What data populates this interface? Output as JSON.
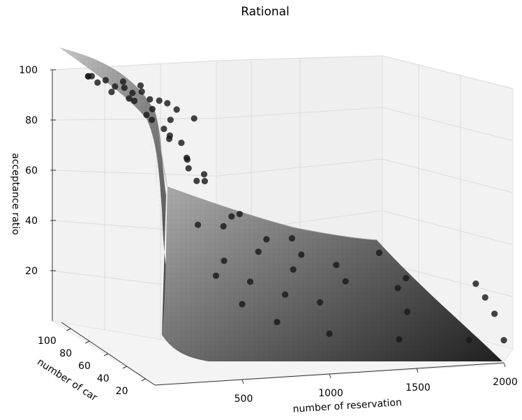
{
  "chart_data": {
    "type": "scatter",
    "projection": "3d",
    "title": "Rational",
    "xlabel": "number of reservation",
    "ylabel": "number of car",
    "zlabel": "acceptance ratio",
    "x_ticks": [
      "500",
      "1000",
      "1500",
      "2000"
    ],
    "y_ticks": [
      "20",
      "40",
      "60",
      "80",
      "100"
    ],
    "z_ticks": [
      "20",
      "40",
      "60",
      "80",
      "100"
    ],
    "xlim": [
      0,
      2000
    ],
    "ylim": [
      10,
      110
    ],
    "zlim": [
      0,
      100
    ],
    "grid": true,
    "colors": {
      "points": "#1a1a1a",
      "surface_light": "#c4c4c4",
      "surface_dark": "#262626",
      "pane": "#f2f2f2",
      "grid": "#dddddd"
    },
    "series": [
      {
        "kind": "surface",
        "description": "fitted rational surface, z decreasing with number of reservation and increasing with number of car"
      },
      {
        "kind": "points",
        "points": [
          {
            "x": 100,
            "y": 100,
            "z": 100
          },
          {
            "x": 100,
            "y": 100,
            "z": 100
          },
          {
            "x": 120,
            "y": 100,
            "z": 100
          },
          {
            "x": 200,
            "y": 100,
            "z": 98
          },
          {
            "x": 300,
            "y": 100,
            "z": 97
          },
          {
            "x": 400,
            "y": 100,
            "z": 95
          },
          {
            "x": 100,
            "y": 90,
            "z": 100
          },
          {
            "x": 200,
            "y": 90,
            "z": 98
          },
          {
            "x": 300,
            "y": 90,
            "z": 95
          },
          {
            "x": 400,
            "y": 90,
            "z": 92
          },
          {
            "x": 500,
            "y": 90,
            "z": 90
          },
          {
            "x": 200,
            "y": 80,
            "z": 100
          },
          {
            "x": 300,
            "y": 80,
            "z": 98
          },
          {
            "x": 400,
            "y": 80,
            "z": 94
          },
          {
            "x": 500,
            "y": 80,
            "z": 90
          },
          {
            "x": 600,
            "y": 80,
            "z": 86
          },
          {
            "x": 100,
            "y": 75,
            "z": 100
          },
          {
            "x": 200,
            "y": 75,
            "z": 97
          },
          {
            "x": 300,
            "y": 75,
            "z": 90
          },
          {
            "x": 400,
            "y": 75,
            "z": 84
          },
          {
            "x": 500,
            "y": 75,
            "z": 78
          },
          {
            "x": 150,
            "y": 60,
            "z": 100
          },
          {
            "x": 250,
            "y": 60,
            "z": 92
          },
          {
            "x": 350,
            "y": 60,
            "z": 84
          },
          {
            "x": 450,
            "y": 60,
            "z": 76
          },
          {
            "x": 550,
            "y": 60,
            "z": 69
          },
          {
            "x": 200,
            "y": 50,
            "z": 99
          },
          {
            "x": 300,
            "y": 50,
            "z": 88
          },
          {
            "x": 400,
            "y": 50,
            "z": 78
          },
          {
            "x": 500,
            "y": 50,
            "z": 69
          },
          {
            "x": 700,
            "y": 50,
            "z": 55
          },
          {
            "x": 1000,
            "y": 50,
            "z": 44
          },
          {
            "x": 1500,
            "y": 50,
            "z": 36
          },
          {
            "x": 250,
            "y": 40,
            "z": 97
          },
          {
            "x": 400,
            "y": 40,
            "z": 72
          },
          {
            "x": 600,
            "y": 40,
            "z": 57
          },
          {
            "x": 800,
            "y": 40,
            "z": 47
          },
          {
            "x": 1000,
            "y": 40,
            "z": 40
          },
          {
            "x": 1200,
            "y": 40,
            "z": 35
          },
          {
            "x": 1600,
            "y": 40,
            "z": 28
          },
          {
            "x": 2000,
            "y": 40,
            "z": 24
          },
          {
            "x": 300,
            "y": 30,
            "z": 80
          },
          {
            "x": 500,
            "y": 30,
            "z": 56
          },
          {
            "x": 700,
            "y": 30,
            "z": 45
          },
          {
            "x": 900,
            "y": 30,
            "z": 37
          },
          {
            "x": 1200,
            "y": 30,
            "z": 31
          },
          {
            "x": 1500,
            "y": 30,
            "z": 27
          },
          {
            "x": 2000,
            "y": 30,
            "z": 21
          },
          {
            "x": 300,
            "y": 20,
            "z": 60
          },
          {
            "x": 450,
            "y": 20,
            "z": 45
          },
          {
            "x": 600,
            "y": 20,
            "z": 36
          },
          {
            "x": 800,
            "y": 20,
            "z": 30
          },
          {
            "x": 1000,
            "y": 20,
            "z": 26
          },
          {
            "x": 1500,
            "y": 20,
            "z": 20
          },
          {
            "x": 2000,
            "y": 20,
            "z": 17
          },
          {
            "x": 350,
            "y": 10,
            "z": 42
          },
          {
            "x": 500,
            "y": 10,
            "z": 30
          },
          {
            "x": 700,
            "y": 10,
            "z": 22
          },
          {
            "x": 1000,
            "y": 10,
            "z": 16
          },
          {
            "x": 1400,
            "y": 10,
            "z": 12
          },
          {
            "x": 1800,
            "y": 10,
            "z": 10
          },
          {
            "x": 2000,
            "y": 10,
            "z": 9
          }
        ]
      }
    ]
  }
}
